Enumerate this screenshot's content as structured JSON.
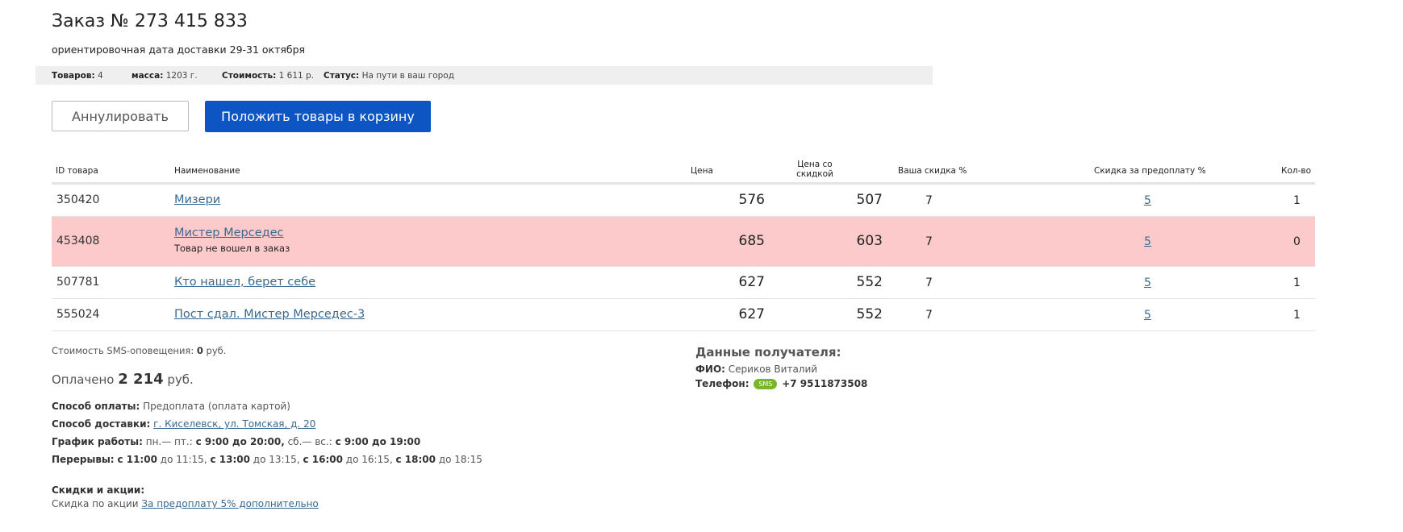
{
  "order": {
    "title": "Заказ № 273 415 833",
    "delivery": "ориентировочная дата доставки 29-31 октября"
  },
  "summary": {
    "items_label": "Товаров:",
    "items_value": "4",
    "mass_label": "масса:",
    "mass_value": "1203 г.",
    "cost_label": "Стоимость:",
    "cost_value": "1 611 р.",
    "status_label": "Статус:",
    "status_value": "На пути в ваш город"
  },
  "buttons": {
    "cancel": "Аннулировать",
    "to_cart": "Положить товары в корзину"
  },
  "table": {
    "headers": {
      "id": "ID товара",
      "name": "Наименование",
      "price": "Цена",
      "disc_price_1": "Цена со",
      "disc_price_2": "скидкой",
      "your_discount": "Ваша скидка %",
      "prepay_discount": "Скидка за предоплату %",
      "qty": "Кол-во"
    },
    "rows": [
      {
        "id": "350420",
        "name": "Мизери",
        "note": "",
        "price": "576",
        "disc_price": "507",
        "your_discount": "7",
        "prepay_discount": "5",
        "qty": "1"
      },
      {
        "id": "453408",
        "name": "Мистер Мерседес",
        "note": "Товар не вошел в заказ",
        "price": "685",
        "disc_price": "603",
        "your_discount": "7",
        "prepay_discount": "5",
        "qty": "0"
      },
      {
        "id": "507781",
        "name": "Кто нашел, берет себе",
        "note": "",
        "price": "627",
        "disc_price": "552",
        "your_discount": "7",
        "prepay_discount": "5",
        "qty": "1"
      },
      {
        "id": "555024",
        "name": "Пост сдал. Мистер Мерседес-3",
        "note": "",
        "price": "627",
        "disc_price": "552",
        "your_discount": "7",
        "prepay_discount": "5",
        "qty": "1"
      }
    ]
  },
  "payment": {
    "sms_label": "Стоимость SMS-оповещения:",
    "sms_value": "0",
    "sms_unit": "руб.",
    "paid_label": "Оплачено",
    "paid_value": "2 214",
    "paid_unit": "руб."
  },
  "details": {
    "pay_method_label": "Способ оплаты:",
    "pay_method_value": "Предоплата (оплата картой)",
    "delivery_method_label": "Способ доставки:",
    "delivery_method_value": "г. Киселевск, ул. Томская, д. 20",
    "schedule_label": "График работы:",
    "schedule_days1": "пн.— пт.:",
    "schedule_time1": "с 9:00 до 20:00,",
    "schedule_days2": "сб.— вс.:",
    "schedule_time2": "с 9:00 до 19:00",
    "breaks_label": "Перерывы:",
    "break1_from": "с 11:00",
    "break1_to": "до 11:15,",
    "break2_from": "с 13:00",
    "break2_to": "до 13:15,",
    "break3_from": "с 16:00",
    "break3_to": "до 16:15,",
    "break4_from": "с 18:00",
    "break4_to": "до 18:15"
  },
  "promo": {
    "title": "Скидки и акции:",
    "text": "Скидка по акции",
    "link": "За предоплату 5% дополнительно"
  },
  "recipient": {
    "title": "Данные получателя:",
    "fio_label": "ФИО:",
    "fio_value": "Сериков Виталий",
    "phone_label": "Телефон:",
    "phone_badge": "SMS",
    "phone_value": "+7 9511873508"
  }
}
